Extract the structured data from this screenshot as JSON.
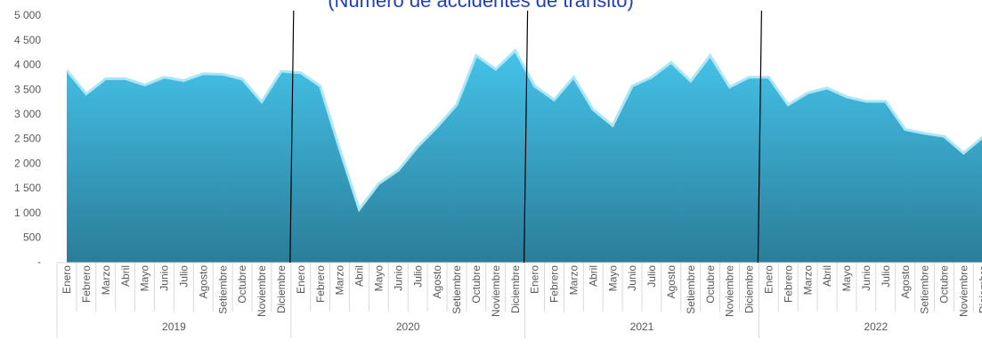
{
  "chart_data": {
    "type": "area",
    "title": "(Número de accidentes de tránsito)",
    "categories": [
      "Enero",
      "Febrero",
      "Marzo",
      "Abril",
      "Mayo",
      "Junio",
      "Julio",
      "Agosto",
      "Setiembre",
      "Octubre",
      "Noviembre",
      "Diciembre",
      "Enero",
      "Febrero",
      "Marzo",
      "Abril",
      "Mayo",
      "Junio",
      "Julio",
      "Agosto",
      "Setiembre",
      "Octubre",
      "Noviembre",
      "Diciembre",
      "Enero",
      "Febrero",
      "Marzo",
      "Abril",
      "Mayo",
      "Junio",
      "Julio",
      "Agosto",
      "Setiembre",
      "Octubre",
      "Noviembre",
      "Diciembre",
      "Enero",
      "Febrero",
      "Marzo",
      "Abril",
      "Mayo",
      "Junio",
      "Julio",
      "Agosto",
      "Setiembre",
      "Octubre",
      "Noviembre",
      "Diciembre"
    ],
    "groups": [
      "2019",
      "2020",
      "2021",
      "2022"
    ],
    "values": [
      3900,
      3420,
      3730,
      3730,
      3600,
      3760,
      3690,
      3830,
      3820,
      3720,
      3260,
      3880,
      3850,
      3580,
      2300,
      1080,
      1600,
      1870,
      2350,
      2750,
      3200,
      4200,
      3920,
      4300,
      3580,
      3300,
      3760,
      3100,
      2780,
      3580,
      3760,
      4060,
      3680,
      4200,
      3560,
      3760,
      3760,
      3200,
      3440,
      3540,
      3360,
      3270,
      3270,
      2700,
      2620,
      2560,
      2220,
      2550
    ],
    "color": "#3bb8e0",
    "ylim": [
      0,
      5000
    ],
    "yticks": [
      {
        "value": 0,
        "label": "-"
      },
      500,
      {
        "value": 1000,
        "label": "1 000"
      },
      {
        "value": 1500,
        "label": "1 500"
      },
      {
        "value": 2000,
        "label": "2 000"
      },
      {
        "value": 2500,
        "label": "2 500"
      },
      {
        "value": 3000,
        "label": "3 000"
      },
      {
        "value": 3500,
        "label": "3 500"
      },
      {
        "value": 4000,
        "label": "4 000"
      },
      {
        "value": 4500,
        "label": "4 500"
      },
      {
        "value": 5000,
        "label": "5 000"
      }
    ],
    "grid": false
  }
}
